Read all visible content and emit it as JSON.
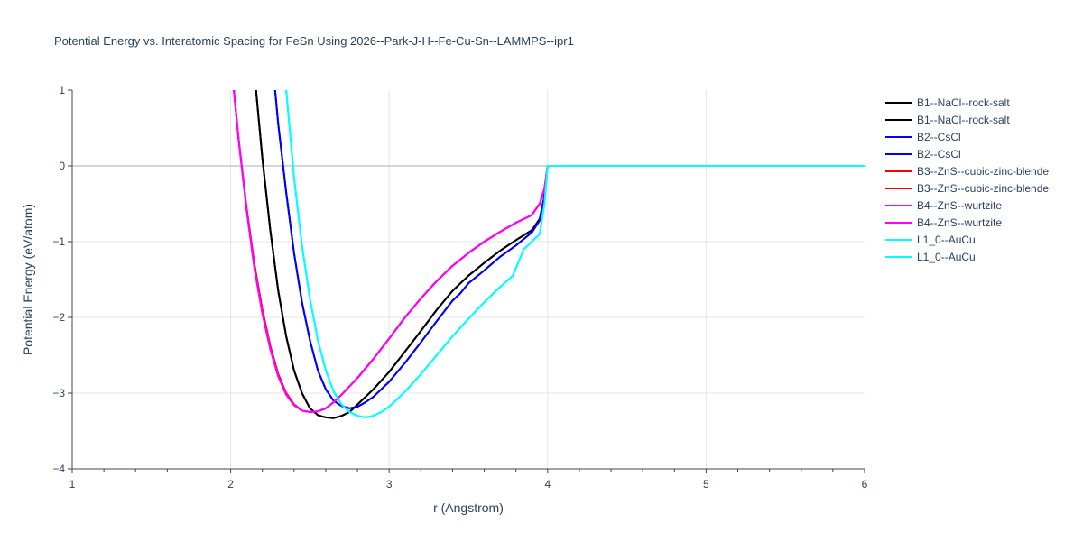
{
  "chart_data": {
    "type": "line",
    "title": "Potential Energy vs. Interatomic Spacing for FeSn Using 2026--Park-J-H--Fe-Cu-Sn--LAMMPS--ipr1",
    "xlabel": "r (Angstrom)",
    "ylabel": "Potential Energy (eV/atom)",
    "xlim": [
      1,
      6
    ],
    "ylim": [
      -4,
      1
    ],
    "x_ticks": [
      "1",
      "2",
      "3",
      "4",
      "5",
      "6"
    ],
    "y_ticks": [
      "1",
      "0",
      "−1",
      "−2",
      "−3",
      "−4"
    ],
    "grid": true,
    "legend_position": "top-right",
    "series": [
      {
        "name": "B1--NaCl--rock-salt",
        "color": "#000000",
        "x": [
          2.16,
          2.2,
          2.25,
          2.3,
          2.35,
          2.4,
          2.45,
          2.5,
          2.55,
          2.6,
          2.65,
          2.7,
          2.75,
          2.8,
          2.9,
          3.0,
          3.1,
          3.2,
          3.3,
          3.4,
          3.5,
          3.6,
          3.7,
          3.8,
          3.9,
          3.95,
          3.98,
          4.0,
          6.0
        ],
        "y": [
          1.0,
          0.1,
          -0.85,
          -1.65,
          -2.25,
          -2.7,
          -3.0,
          -3.2,
          -3.29,
          -3.32,
          -3.33,
          -3.3,
          -3.25,
          -3.15,
          -2.95,
          -2.72,
          -2.45,
          -2.18,
          -1.9,
          -1.65,
          -1.45,
          -1.28,
          -1.12,
          -0.98,
          -0.85,
          -0.7,
          -0.4,
          0.0,
          0.0
        ]
      },
      {
        "name": "B1--NaCl--rock-salt",
        "color": "#000000",
        "x": [
          2.16,
          2.2,
          2.25,
          2.3,
          2.35,
          2.4,
          2.45,
          2.5,
          2.55,
          2.6,
          2.65,
          2.7,
          2.75,
          2.8,
          2.9,
          3.0,
          3.1,
          3.2,
          3.3,
          3.4,
          3.5,
          3.6,
          3.7,
          3.8,
          3.9,
          3.95,
          3.98,
          4.0,
          6.0
        ],
        "y": [
          1.0,
          0.1,
          -0.85,
          -1.65,
          -2.25,
          -2.7,
          -3.0,
          -3.2,
          -3.29,
          -3.32,
          -3.33,
          -3.3,
          -3.25,
          -3.15,
          -2.95,
          -2.72,
          -2.45,
          -2.18,
          -1.9,
          -1.65,
          -1.45,
          -1.28,
          -1.12,
          -0.98,
          -0.85,
          -0.7,
          -0.4,
          0.0,
          0.0
        ]
      },
      {
        "name": "B2--CsCl",
        "color": "#0000ff",
        "x": [
          2.28,
          2.3,
          2.35,
          2.4,
          2.45,
          2.5,
          2.55,
          2.6,
          2.65,
          2.7,
          2.75,
          2.8,
          2.85,
          2.9,
          3.0,
          3.1,
          3.2,
          3.3,
          3.4,
          3.45,
          3.5,
          3.6,
          3.7,
          3.8,
          3.9,
          3.95,
          3.98,
          4.0,
          6.0
        ],
        "y": [
          1.0,
          0.55,
          -0.35,
          -1.15,
          -1.8,
          -2.3,
          -2.7,
          -2.95,
          -3.1,
          -3.17,
          -3.2,
          -3.18,
          -3.12,
          -3.05,
          -2.85,
          -2.6,
          -2.33,
          -2.05,
          -1.78,
          -1.68,
          -1.55,
          -1.38,
          -1.2,
          -1.05,
          -0.88,
          -0.72,
          -0.4,
          0.0,
          0.0
        ]
      },
      {
        "name": "B2--CsCl",
        "color": "#0000ff",
        "x": [
          2.28,
          2.3,
          2.35,
          2.4,
          2.45,
          2.5,
          2.55,
          2.6,
          2.65,
          2.7,
          2.75,
          2.8,
          2.85,
          2.9,
          3.0,
          3.1,
          3.2,
          3.3,
          3.4,
          3.45,
          3.5,
          3.6,
          3.7,
          3.8,
          3.9,
          3.95,
          3.98,
          4.0,
          6.0
        ],
        "y": [
          1.0,
          0.55,
          -0.35,
          -1.15,
          -1.8,
          -2.3,
          -2.7,
          -2.95,
          -3.1,
          -3.17,
          -3.2,
          -3.18,
          -3.12,
          -3.05,
          -2.85,
          -2.6,
          -2.33,
          -2.05,
          -1.78,
          -1.68,
          -1.55,
          -1.38,
          -1.2,
          -1.05,
          -0.88,
          -0.72,
          -0.4,
          0.0,
          0.0
        ]
      },
      {
        "name": "B3--ZnS--cubic-zinc-blende",
        "color": "#ff0000",
        "x": [
          2.02,
          2.05,
          2.1,
          2.15,
          2.2,
          2.25,
          2.3,
          2.35,
          2.4,
          2.45,
          2.5,
          2.55,
          2.6,
          2.65,
          2.7,
          2.8,
          2.9,
          3.0,
          3.1,
          3.2,
          3.3,
          3.4,
          3.5,
          3.6,
          3.7,
          3.8,
          3.9,
          3.95,
          3.98,
          4.0,
          6.0
        ],
        "y": [
          1.0,
          0.35,
          -0.55,
          -1.3,
          -1.9,
          -2.38,
          -2.75,
          -3.0,
          -3.15,
          -3.23,
          -3.25,
          -3.24,
          -3.2,
          -3.12,
          -3.02,
          -2.8,
          -2.55,
          -2.28,
          -2.0,
          -1.75,
          -1.52,
          -1.32,
          -1.15,
          -1.0,
          -0.87,
          -0.75,
          -0.65,
          -0.5,
          -0.3,
          0.0,
          0.0
        ]
      },
      {
        "name": "B3--ZnS--cubic-zinc-blende",
        "color": "#ff0000",
        "x": [
          2.02,
          2.05,
          2.1,
          2.15,
          2.2,
          2.25,
          2.3,
          2.35,
          2.4,
          2.45,
          2.5,
          2.55,
          2.6,
          2.65,
          2.7,
          2.8,
          2.9,
          3.0,
          3.1,
          3.2,
          3.3,
          3.4,
          3.5,
          3.6,
          3.7,
          3.8,
          3.9,
          3.95,
          3.98,
          4.0,
          6.0
        ],
        "y": [
          1.0,
          0.35,
          -0.55,
          -1.3,
          -1.9,
          -2.38,
          -2.75,
          -3.0,
          -3.15,
          -3.23,
          -3.25,
          -3.24,
          -3.2,
          -3.12,
          -3.02,
          -2.8,
          -2.55,
          -2.28,
          -2.0,
          -1.75,
          -1.52,
          -1.32,
          -1.15,
          -1.0,
          -0.87,
          -0.75,
          -0.65,
          -0.5,
          -0.3,
          0.0,
          0.0
        ]
      },
      {
        "name": "B4--ZnS--wurtzite",
        "color": "#ff00ff",
        "x": [
          2.02,
          2.05,
          2.1,
          2.15,
          2.2,
          2.25,
          2.3,
          2.35,
          2.4,
          2.45,
          2.5,
          2.55,
          2.6,
          2.65,
          2.7,
          2.8,
          2.9,
          3.0,
          3.1,
          3.2,
          3.3,
          3.4,
          3.5,
          3.6,
          3.7,
          3.8,
          3.9,
          3.95,
          3.98,
          4.0,
          6.0
        ],
        "y": [
          1.0,
          0.35,
          -0.58,
          -1.35,
          -1.95,
          -2.42,
          -2.78,
          -3.02,
          -3.16,
          -3.23,
          -3.25,
          -3.24,
          -3.2,
          -3.12,
          -3.02,
          -2.8,
          -2.55,
          -2.28,
          -2.0,
          -1.75,
          -1.52,
          -1.32,
          -1.15,
          -1.0,
          -0.87,
          -0.75,
          -0.65,
          -0.5,
          -0.3,
          0.0,
          0.0
        ]
      },
      {
        "name": "B4--ZnS--wurtzite",
        "color": "#ff00ff",
        "x": [
          2.02,
          2.05,
          2.1,
          2.15,
          2.2,
          2.25,
          2.3,
          2.35,
          2.4,
          2.45,
          2.5,
          2.55,
          2.6,
          2.65,
          2.7,
          2.8,
          2.9,
          3.0,
          3.1,
          3.2,
          3.3,
          3.4,
          3.5,
          3.6,
          3.7,
          3.8,
          3.9,
          3.95,
          3.98,
          4.0,
          6.0
        ],
        "y": [
          1.0,
          0.35,
          -0.58,
          -1.35,
          -1.95,
          -2.42,
          -2.78,
          -3.02,
          -3.16,
          -3.23,
          -3.25,
          -3.24,
          -3.2,
          -3.12,
          -3.02,
          -2.8,
          -2.55,
          -2.28,
          -2.0,
          -1.75,
          -1.52,
          -1.32,
          -1.15,
          -1.0,
          -0.87,
          -0.75,
          -0.65,
          -0.5,
          -0.3,
          0.0,
          0.0
        ]
      },
      {
        "name": "L1_0--AuCu",
        "color": "#00ffff",
        "x": [
          2.35,
          2.4,
          2.45,
          2.5,
          2.55,
          2.6,
          2.65,
          2.7,
          2.75,
          2.8,
          2.85,
          2.9,
          2.95,
          3.0,
          3.1,
          3.2,
          3.3,
          3.4,
          3.5,
          3.6,
          3.7,
          3.78,
          3.82,
          3.85,
          3.9,
          3.95,
          3.98,
          4.0,
          6.0
        ],
        "y": [
          1.0,
          -0.15,
          -1.05,
          -1.75,
          -2.3,
          -2.7,
          -2.98,
          -3.15,
          -3.25,
          -3.3,
          -3.32,
          -3.3,
          -3.25,
          -3.18,
          -2.98,
          -2.75,
          -2.5,
          -2.25,
          -2.02,
          -1.8,
          -1.6,
          -1.45,
          -1.25,
          -1.1,
          -1.0,
          -0.9,
          -0.5,
          0.0,
          0.0
        ]
      },
      {
        "name": "L1_0--AuCu",
        "color": "#00ffff",
        "x": [
          2.35,
          2.4,
          2.45,
          2.5,
          2.55,
          2.6,
          2.65,
          2.7,
          2.75,
          2.8,
          2.85,
          2.9,
          2.95,
          3.0,
          3.1,
          3.2,
          3.3,
          3.4,
          3.5,
          3.6,
          3.7,
          3.78,
          3.82,
          3.85,
          3.9,
          3.95,
          3.98,
          4.0,
          6.0
        ],
        "y": [
          1.0,
          -0.15,
          -1.05,
          -1.75,
          -2.3,
          -2.7,
          -2.98,
          -3.15,
          -3.25,
          -3.3,
          -3.32,
          -3.3,
          -3.25,
          -3.18,
          -2.98,
          -2.75,
          -2.5,
          -2.25,
          -2.02,
          -1.8,
          -1.6,
          -1.45,
          -1.25,
          -1.1,
          -1.0,
          -0.9,
          -0.5,
          0.0,
          0.0
        ]
      }
    ]
  }
}
